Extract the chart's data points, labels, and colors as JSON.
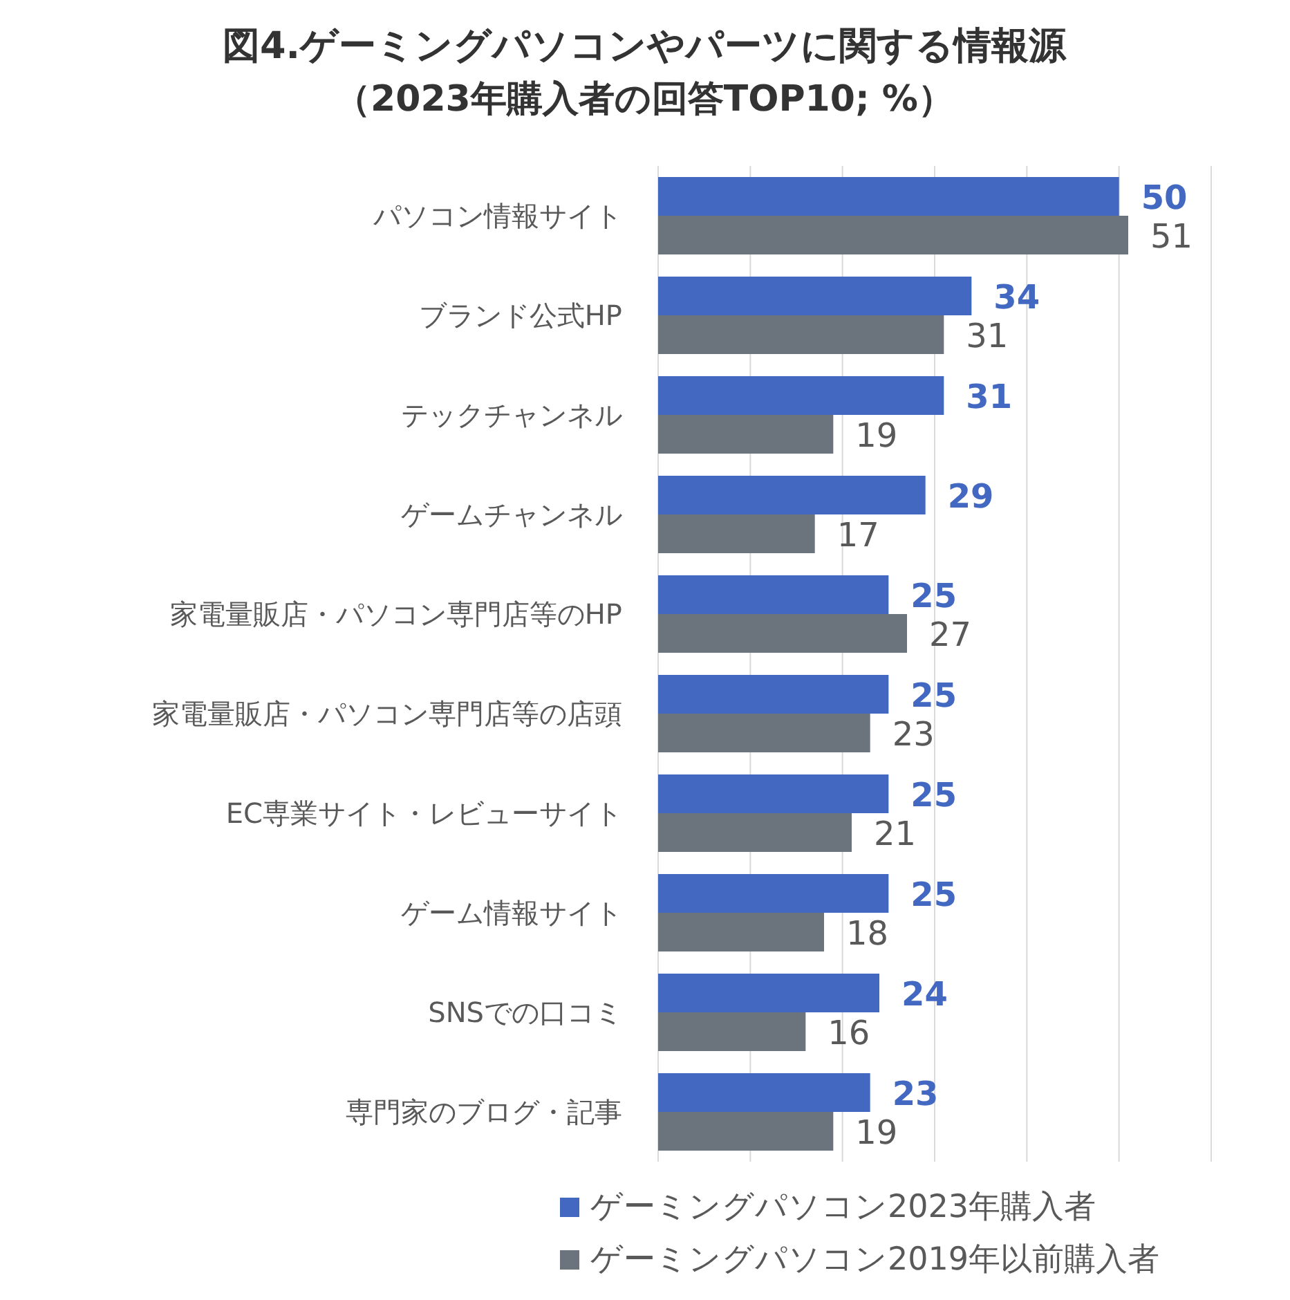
{
  "chart_data": {
    "type": "bar",
    "orientation": "horizontal",
    "title": "図4.ゲーミングパソコンやパーツに関する情報源",
    "subtitle": "（2023年購入者の回答TOP10; %）",
    "categories": [
      "パソコン情報サイト",
      "ブランド公式HP",
      "テックチャンネル",
      "ゲームチャンネル",
      "家電量販店・パソコン専門店等のHP",
      "家電量販店・パソコン専門店等の店頭",
      "EC専業サイト・レビューサイト",
      "ゲーム情報サイト",
      "SNSでの口コミ",
      "専門家のブログ・記事"
    ],
    "series": [
      {
        "name": "ゲーミングパソコン2023年購入者",
        "color": "#4268c2",
        "values": [
          50,
          34,
          31,
          29,
          25,
          25,
          25,
          25,
          24,
          23
        ]
      },
      {
        "name": "ゲーミングパソコン2019年以前購入者",
        "color": "#6b747c",
        "values": [
          51,
          31,
          19,
          17,
          27,
          23,
          21,
          18,
          16,
          19
        ]
      }
    ],
    "xlim": [
      0,
      60
    ],
    "xticks": [
      {
        "value": 0,
        "label": null
      },
      {
        "value": 10,
        "label": null
      },
      {
        "value": 20,
        "label": null
      },
      {
        "value": 30,
        "label": null
      },
      {
        "value": 40,
        "label": null
      },
      {
        "value": 50,
        "label": null
      },
      {
        "value": 60,
        "label": null
      }
    ],
    "tick_labels": "y",
    "grid": "x",
    "legend": "bottom",
    "data_labels": true
  }
}
